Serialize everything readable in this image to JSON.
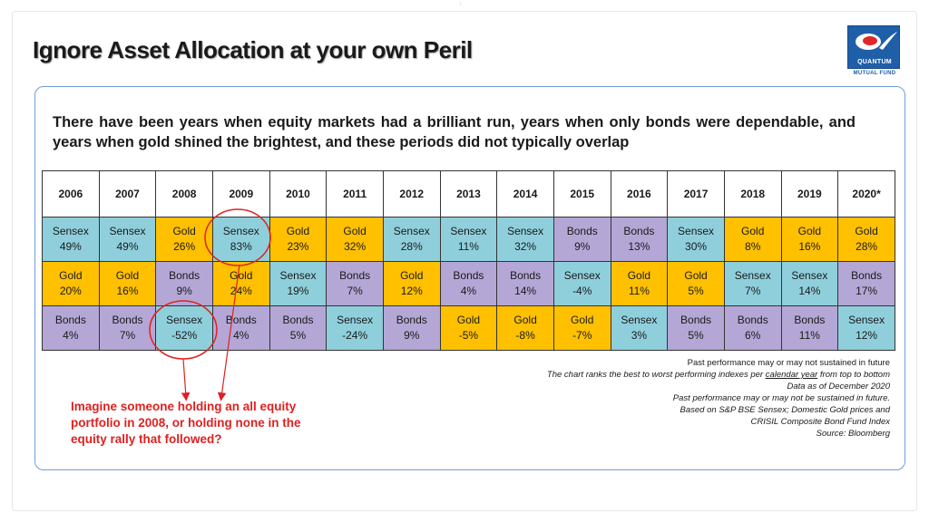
{
  "title": "Ignore Asset Allocation at your own Peril",
  "logo": {
    "name": "QUANTUM",
    "subtitle": "MUTUAL FUND",
    "icon": "quantum-logo-icon",
    "brand_color": "#1f5fa8"
  },
  "intro": "There have been years when equity markets had a brilliant run, years when only bonds were dependable, and years when gold shined the brightest, and these periods did not typically overlap",
  "colors": {
    "Sensex": "#8fcfdc",
    "Gold": "#ffc000",
    "Bonds": "#b4a7d6",
    "annotation": "#e02020"
  },
  "table": {
    "years": [
      "2006",
      "2007",
      "2008",
      "2009",
      "2010",
      "2011",
      "2012",
      "2013",
      "2014",
      "2015",
      "2016",
      "2017",
      "2018",
      "2019",
      "2020*"
    ],
    "rows": [
      [
        {
          "asset": "Sensex",
          "ret": "49%"
        },
        {
          "asset": "Sensex",
          "ret": "49%"
        },
        {
          "asset": "Gold",
          "ret": "26%"
        },
        {
          "asset": "Sensex",
          "ret": "83%"
        },
        {
          "asset": "Gold",
          "ret": "23%"
        },
        {
          "asset": "Gold",
          "ret": "32%"
        },
        {
          "asset": "Sensex",
          "ret": "28%"
        },
        {
          "asset": "Sensex",
          "ret": "11%"
        },
        {
          "asset": "Sensex",
          "ret": "32%"
        },
        {
          "asset": "Bonds",
          "ret": "9%"
        },
        {
          "asset": "Bonds",
          "ret": "13%"
        },
        {
          "asset": "Sensex",
          "ret": "30%"
        },
        {
          "asset": "Gold",
          "ret": "8%"
        },
        {
          "asset": "Gold",
          "ret": "16%"
        },
        {
          "asset": "Gold",
          "ret": "28%"
        }
      ],
      [
        {
          "asset": "Gold",
          "ret": "20%"
        },
        {
          "asset": "Gold",
          "ret": "16%"
        },
        {
          "asset": "Bonds",
          "ret": "9%"
        },
        {
          "asset": "Gold",
          "ret": "24%"
        },
        {
          "asset": "Sensex",
          "ret": "19%"
        },
        {
          "asset": "Bonds",
          "ret": "7%"
        },
        {
          "asset": "Gold",
          "ret": "12%"
        },
        {
          "asset": "Bonds",
          "ret": "4%"
        },
        {
          "asset": "Bonds",
          "ret": "14%"
        },
        {
          "asset": "Sensex",
          "ret": "-4%"
        },
        {
          "asset": "Gold",
          "ret": "11%"
        },
        {
          "asset": "Gold",
          "ret": "5%"
        },
        {
          "asset": "Sensex",
          "ret": "7%"
        },
        {
          "asset": "Sensex",
          "ret": "14%"
        },
        {
          "asset": "Bonds",
          "ret": "17%"
        }
      ],
      [
        {
          "asset": "Bonds",
          "ret": "4%"
        },
        {
          "asset": "Bonds",
          "ret": "7%"
        },
        {
          "asset": "Sensex",
          "ret": "-52%"
        },
        {
          "asset": "Bonds",
          "ret": "4%"
        },
        {
          "asset": "Bonds",
          "ret": "5%"
        },
        {
          "asset": "Sensex",
          "ret": "-24%"
        },
        {
          "asset": "Bonds",
          "ret": "9%"
        },
        {
          "asset": "Gold",
          "ret": "-5%"
        },
        {
          "asset": "Gold",
          "ret": "-8%"
        },
        {
          "asset": "Gold",
          "ret": "-7%"
        },
        {
          "asset": "Sensex",
          "ret": "3%"
        },
        {
          "asset": "Bonds",
          "ret": "5%"
        },
        {
          "asset": "Bonds",
          "ret": "6%"
        },
        {
          "asset": "Bonds",
          "ret": "11%"
        },
        {
          "asset": "Sensex",
          "ret": "12%"
        }
      ]
    ],
    "highlighted_cells": [
      {
        "row": 0,
        "year": "2009"
      },
      {
        "row": 2,
        "year": "2008"
      }
    ]
  },
  "notes": {
    "line1": "Past performance may or may not sustained in future",
    "line2_before": "The chart ranks the best to worst performing indexes per ",
    "line2_underlined": "calendar year",
    "line2_after": " from top to bottom",
    "line3": "Data as of December 2020",
    "line4": "Past performance may or may not be sustained in future.",
    "line5": "Based on S&P BSE Sensex; Domestic Gold prices and",
    "line6": "CRISIL Composite Bond Fund Index",
    "line7": "Source: Bloomberg"
  },
  "callout": "Imagine someone holding an all equity portfolio in 2008, or holding none in the equity rally that followed?",
  "top_mark": "1"
}
